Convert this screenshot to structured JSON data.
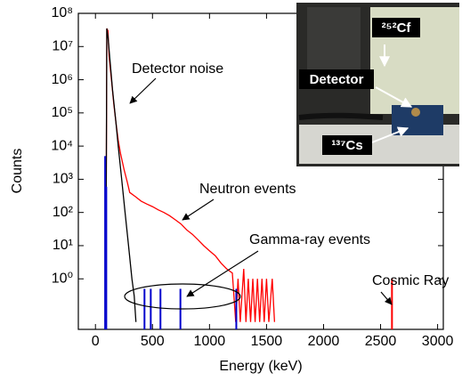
{
  "chart_data": {
    "type": "line",
    "xlabel": "Energy (keV)",
    "ylabel": "Counts",
    "xlim": [
      -150,
      3050
    ],
    "ylim": [
      0.03,
      100000000
    ],
    "yscale": "log",
    "xticks": [
      0,
      500,
      1000,
      1500,
      2000,
      2500,
      3000
    ],
    "yticks": [
      {
        "value": 1,
        "label": "10⁰"
      },
      {
        "value": 10,
        "label": "10¹"
      },
      {
        "value": 100,
        "label": "10²"
      },
      {
        "value": 1000,
        "label": "10³"
      },
      {
        "value": 10000,
        "label": "10⁴"
      },
      {
        "value": 100000,
        "label": "10⁵"
      },
      {
        "value": 1000000,
        "label": "10⁶"
      },
      {
        "value": 10000000,
        "label": "10⁷"
      },
      {
        "value": 100000000,
        "label": "10⁸"
      }
    ],
    "series": [
      {
        "color": "#ff0000",
        "style": "line",
        "x": [
          85,
          95,
          100,
          110,
          120,
          140,
          160,
          180,
          200,
          220,
          250,
          280,
          300,
          350,
          400,
          450,
          500,
          550,
          600,
          650,
          700,
          750,
          800,
          850,
          900,
          950,
          1000,
          1050,
          1100,
          1150,
          1200,
          1230,
          1250,
          1270,
          1300,
          1320,
          1340,
          1360,
          1380,
          1400,
          1420,
          1440,
          1460,
          1480,
          1500,
          1520,
          1550,
          1570
        ],
        "values": [
          0.05,
          1000,
          35000000,
          30000000,
          5000000,
          1000000,
          200000,
          50000,
          15000,
          6000,
          2000,
          800,
          400,
          300,
          220,
          180,
          150,
          120,
          100,
          80,
          60,
          45,
          30,
          22,
          15,
          10,
          7,
          5,
          3,
          2,
          1.5,
          0.05,
          1,
          0.05,
          2,
          0.05,
          1,
          0.05,
          1,
          0.05,
          1,
          0.05,
          1,
          0.05,
          1,
          0.05,
          1,
          0.05
        ]
      },
      {
        "color": "#000000",
        "style": "line",
        "x": [
          85,
          95,
          100,
          110,
          130,
          150,
          180,
          200,
          230,
          260,
          290,
          320,
          340,
          355
        ],
        "values": [
          0.05,
          1000,
          35000000,
          20000000,
          3000000,
          500000,
          50000,
          10000,
          1000,
          100,
          10,
          1,
          0.3,
          0.05
        ]
      },
      {
        "color": "#0000cc",
        "style": "stem",
        "x": [
          85,
          95,
          430,
          485,
          570,
          745,
          1235
        ],
        "values": [
          5000,
          600,
          0.5,
          0.5,
          0.5,
          0.5,
          0.5
        ]
      },
      {
        "color": "#ff0000",
        "style": "stem",
        "x": [
          2600
        ],
        "values": [
          1
        ]
      }
    ],
    "annotations": [
      "Detector noise",
      "Neutron events",
      "Gamma-ray events",
      "Cosmic Ray"
    ],
    "inset_labels": [
      "²⁵²Cf",
      "Detector",
      "¹³⁷Cs"
    ]
  }
}
